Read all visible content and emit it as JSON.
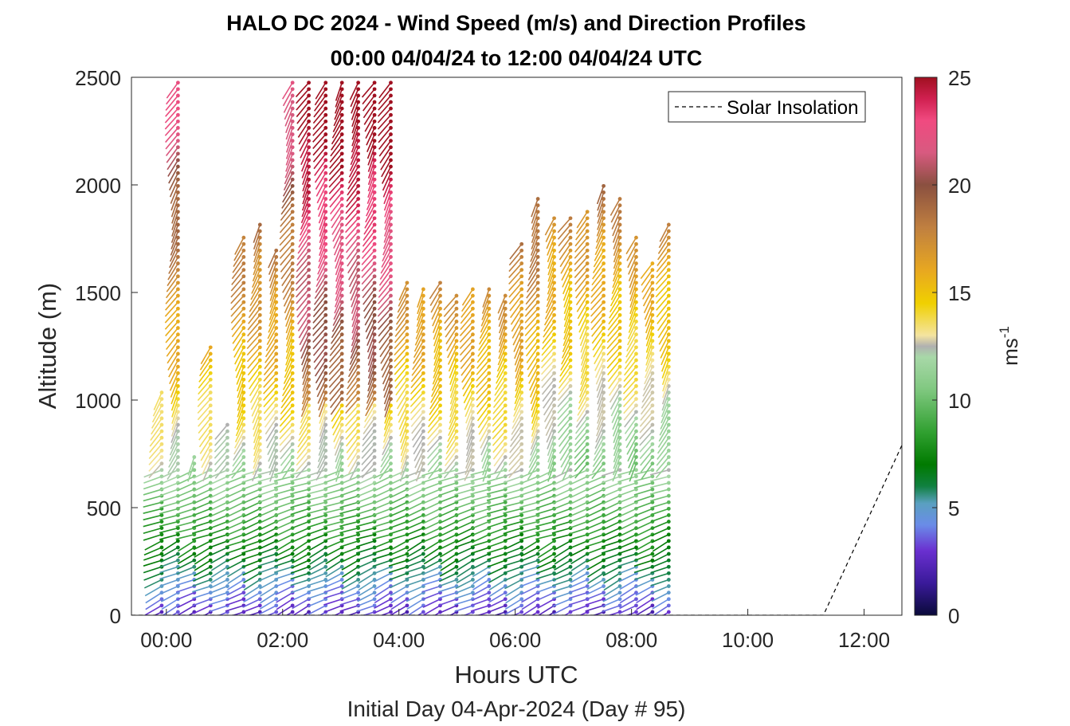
{
  "chart_data": {
    "type": "scatter",
    "title": "HALO DC 2024 - Wind Speed (m/s) and Direction Profiles",
    "subtitle": "00:00 04/04/24 to 12:00 04/04/24  UTC",
    "xlabel": "Hours UTC",
    "ylabel": "Altitude (m)",
    "footer": "Initial Day 04-Apr-2024 (Day # 95)",
    "xlim": [
      -0.6,
      12.65
    ],
    "ylim": [
      0,
      2500
    ],
    "x_ticks": [
      0,
      2,
      4,
      6,
      8,
      10,
      12
    ],
    "x_tick_labels": [
      "00:00",
      "02:00",
      "04:00",
      "06:00",
      "08:00",
      "10:00",
      "12:00"
    ],
    "y_ticks": [
      0,
      500,
      1000,
      1500,
      2000,
      2500
    ],
    "y_tick_labels": [
      "0",
      "500",
      "1000",
      "1500",
      "2000",
      "2500"
    ],
    "legend": {
      "label": "Solar Insolation",
      "position": "top-right"
    },
    "colorbar": {
      "label": "ms",
      "label_exponent": "-1",
      "range": [
        0,
        25
      ],
      "ticks": [
        0,
        5,
        10,
        15,
        20,
        25
      ],
      "tick_labels": [
        "0",
        "5",
        "10",
        "15",
        "20",
        "25"
      ],
      "stops": [
        [
          0,
          "#0a0a3a"
        ],
        [
          1.5,
          "#3a1a9a"
        ],
        [
          3,
          "#6a30d0"
        ],
        [
          4.2,
          "#6a8ce8"
        ],
        [
          5.2,
          "#5aa0c0"
        ],
        [
          6,
          "#108040"
        ],
        [
          7,
          "#007a00"
        ],
        [
          8.5,
          "#30a030"
        ],
        [
          10.5,
          "#80c880"
        ],
        [
          12,
          "#a8d8a8"
        ],
        [
          12.5,
          "#b0b0b0"
        ],
        [
          13,
          "#f4e4a0"
        ],
        [
          14.5,
          "#f0d000"
        ],
        [
          16,
          "#e8a820"
        ],
        [
          18,
          "#c08040"
        ],
        [
          20,
          "#8a5040"
        ],
        [
          21.5,
          "#d85a80"
        ],
        [
          23,
          "#f04a80"
        ],
        [
          24,
          "#d02050"
        ],
        [
          25,
          "#a01020"
        ]
      ]
    },
    "solar_insolation": {
      "x": [
        -0.6,
        11.3,
        12.65
      ],
      "y": [
        0,
        0,
        790
      ]
    },
    "profile_times": [
      -0.08,
      0.2,
      0.48,
      0.76,
      1.05,
      1.33,
      1.61,
      1.89,
      2.17,
      2.45,
      2.74,
      3.02,
      3.3,
      3.58,
      3.86,
      4.14,
      4.42,
      4.71,
      4.99,
      5.27,
      5.55,
      5.83,
      6.11,
      6.39,
      6.67,
      6.95,
      7.24,
      7.52,
      7.8,
      8.08,
      8.36,
      8.64
    ],
    "profile_tops": [
      1050,
      2500,
      750,
      1250,
      900,
      1780,
      1830,
      1700,
      2500,
      2500,
      2500,
      2500,
      2500,
      2500,
      2500,
      1570,
      1530,
      1570,
      1500,
      1530,
      1520,
      1500,
      1750,
      1950,
      1850,
      1870,
      1900,
      2000,
      1950,
      1780,
      1650,
      1830
    ]
  }
}
